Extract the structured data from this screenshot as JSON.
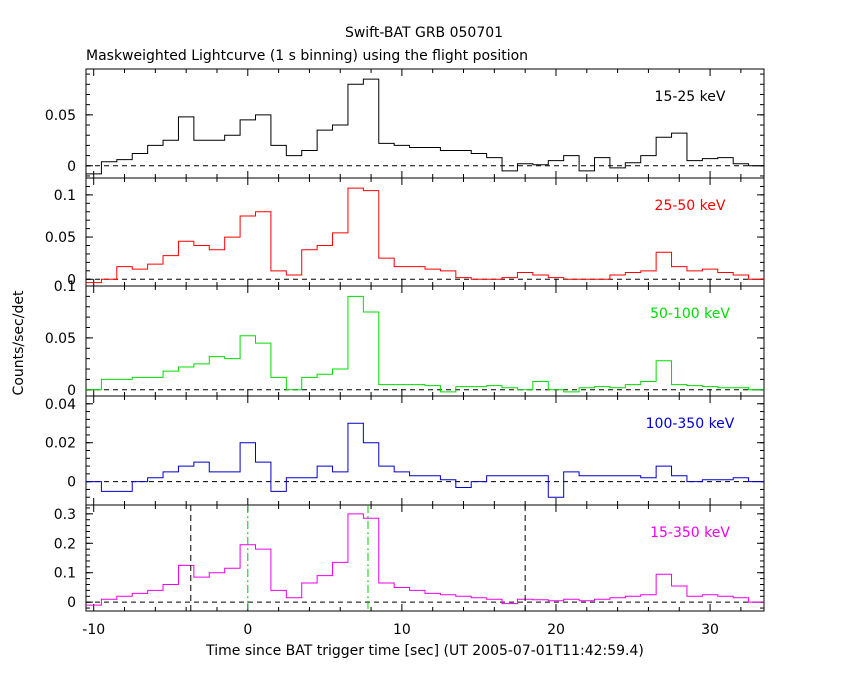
{
  "chart_data": {
    "type": "line",
    "title": "Swift-BAT GRB 050701",
    "subtitle": "Maskweighted Lightcurve (1 s binning) using the flight position",
    "xlabel": "Time since BAT trigger time [sec] (UT 2005-07-01T11:42:59.4)",
    "ylabel": "Counts/sec/det",
    "xlim": [
      -10.5,
      33.5
    ],
    "x_ticks": [
      "-10",
      "0",
      "10",
      "20",
      "30"
    ],
    "x": [
      -10,
      -9,
      -8,
      -7,
      -6,
      -5,
      -4,
      -3,
      -2,
      -1,
      0,
      1,
      2,
      3,
      4,
      5,
      6,
      7,
      8,
      9,
      10,
      11,
      12,
      13,
      14,
      15,
      16,
      17,
      18,
      19,
      20,
      21,
      22,
      23,
      24,
      25,
      26,
      27,
      28,
      29,
      30,
      31,
      32,
      33
    ],
    "vertical_markers": [
      {
        "x": -3.7,
        "style": "dashed",
        "color": "#000000"
      },
      {
        "x": 0.0,
        "style": "dashdot",
        "color": "#00cc00"
      },
      {
        "x": 7.8,
        "style": "dashdot",
        "color": "#00cc00"
      },
      {
        "x": 18.0,
        "style": "dashed",
        "color": "#000000"
      }
    ],
    "panels": [
      {
        "name": "15-25 keV",
        "color": "#000000",
        "ylim": [
          -0.012,
          0.095
        ],
        "ticks": [
          0,
          0.05
        ],
        "tick_labels": [
          "0",
          "0.05"
        ],
        "values": [
          -0.008,
          0.004,
          0.006,
          0.012,
          0.02,
          0.025,
          0.048,
          0.025,
          0.025,
          0.03,
          0.045,
          0.05,
          0.02,
          0.01,
          0.015,
          0.035,
          0.04,
          0.08,
          0.085,
          0.022,
          0.02,
          0.018,
          0.018,
          0.015,
          0.015,
          0.012,
          0.008,
          -0.005,
          0.002,
          0.001,
          0.005,
          0.01,
          -0.005,
          0.008,
          -0.002,
          0.003,
          0.01,
          0.028,
          0.032,
          0.005,
          0.007,
          0.008,
          0.002,
          0.0
        ]
      },
      {
        "name": "25-50 keV",
        "color": "#ff0000",
        "ylim": [
          -0.008,
          0.12
        ],
        "ticks": [
          0,
          0.05,
          0.1
        ],
        "tick_labels": [
          "0",
          "0.05",
          "0.1"
        ],
        "values": [
          -0.004,
          0.0,
          0.015,
          0.012,
          0.018,
          0.028,
          0.045,
          0.04,
          0.035,
          0.05,
          0.075,
          0.08,
          0.01,
          0.005,
          0.035,
          0.04,
          0.055,
          0.108,
          0.105,
          0.025,
          0.015,
          0.015,
          0.012,
          0.01,
          0.002,
          0.0,
          0.0,
          0.002,
          0.008,
          0.005,
          0.002,
          0.0,
          0.0,
          0.0,
          0.005,
          0.008,
          0.01,
          0.032,
          0.015,
          0.01,
          0.012,
          0.008,
          0.005,
          0.0
        ]
      },
      {
        "name": "50-100 keV",
        "color": "#00dd00",
        "ylim": [
          -0.006,
          0.1
        ],
        "ticks": [
          0,
          0.05,
          0.1
        ],
        "tick_labels": [
          "0",
          "0.05",
          "0.1"
        ],
        "values": [
          0.0,
          0.01,
          0.01,
          0.012,
          0.012,
          0.018,
          0.022,
          0.025,
          0.032,
          0.03,
          0.052,
          0.045,
          0.012,
          0.0,
          0.012,
          0.015,
          0.02,
          0.09,
          0.075,
          0.005,
          0.005,
          0.005,
          0.004,
          -0.002,
          0.003,
          0.003,
          0.004,
          0.002,
          0.0,
          0.008,
          0.0,
          -0.002,
          0.002,
          0.003,
          0.002,
          0.005,
          0.008,
          0.028,
          0.005,
          0.004,
          0.003,
          0.002,
          0.002,
          0.0
        ]
      },
      {
        "name": "100-350 keV",
        "color": "#0000cc",
        "ylim": [
          -0.012,
          0.044
        ],
        "ticks": [
          0,
          0.02,
          0.04
        ],
        "tick_labels": [
          "0",
          "0.02",
          "0.04"
        ],
        "values": [
          0.0,
          -0.005,
          -0.005,
          0.0,
          0.002,
          0.005,
          0.008,
          0.01,
          0.005,
          0.005,
          0.02,
          0.01,
          -0.005,
          0.002,
          0.002,
          0.008,
          0.005,
          0.03,
          0.02,
          0.008,
          0.005,
          0.003,
          0.003,
          0.001,
          -0.003,
          0.0,
          0.003,
          0.003,
          0.003,
          0.003,
          -0.008,
          0.005,
          0.003,
          0.003,
          0.003,
          0.003,
          0.002,
          0.008,
          0.003,
          0.0,
          0.001,
          0.001,
          0.002,
          0.0
        ]
      },
      {
        "name": "15-350 keV",
        "color": "#ee00ee",
        "ylim": [
          -0.03,
          0.33
        ],
        "ticks": [
          0,
          0.1,
          0.2,
          0.3
        ],
        "tick_labels": [
          "0",
          "0.1",
          "0.2",
          "0.3"
        ],
        "values": [
          -0.01,
          0.01,
          0.02,
          0.03,
          0.04,
          0.06,
          0.125,
          0.085,
          0.1,
          0.115,
          0.195,
          0.18,
          0.04,
          0.015,
          0.065,
          0.09,
          0.135,
          0.3,
          0.285,
          0.065,
          0.05,
          0.04,
          0.03,
          0.025,
          0.02,
          0.015,
          0.01,
          -0.005,
          0.01,
          0.008,
          0.005,
          0.01,
          0.005,
          0.01,
          0.015,
          0.02,
          0.025,
          0.095,
          0.055,
          0.02,
          0.025,
          0.02,
          0.015,
          0.0
        ]
      }
    ]
  }
}
